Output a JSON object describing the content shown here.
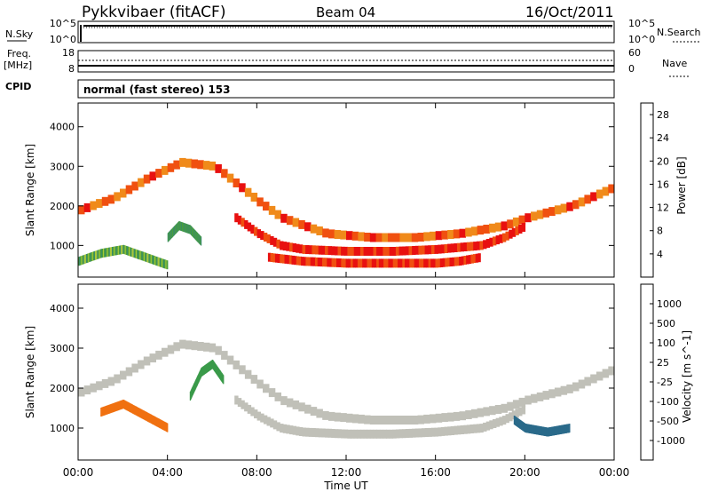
{
  "header": {
    "station": "Pykkvibaer (fitACF)",
    "beam": "Beam 04",
    "date": "16/Oct/2011"
  },
  "sky_panel": {
    "left_label": "N.Sky",
    "left_ticks": [
      "10^5",
      "10^0"
    ],
    "right_label": "N.Search",
    "right_ticks": [
      "10^5",
      "10^0"
    ]
  },
  "freq_panel": {
    "left_label_1": "Freq.",
    "left_label_2": "[MHz]",
    "left_ticks": [
      "18",
      "8"
    ],
    "right_label": "Nave",
    "right_ticks": [
      "60",
      "0"
    ]
  },
  "cpid": {
    "label": "CPID",
    "value": "normal (fast stereo) 153"
  },
  "colors": {
    "power_scale": [
      "#1a2dcc",
      "#2a4fb0",
      "#3a8a6a",
      "#4aa03a",
      "#a8c83a",
      "#f0c02a",
      "#f08a1a",
      "#f05010",
      "#e81010"
    ],
    "velocity_scale": [
      "#1a3acc",
      "#2a6a8a",
      "#3a9a4a",
      "#7ac840",
      "#c8c8c0",
      "#f0a030",
      "#f07010",
      "#e83010",
      "#e81010"
    ],
    "ground_scatter": "#c0c0b8"
  },
  "chart_data": [
    {
      "type": "heatmap",
      "title": "",
      "xlabel": "Time UT",
      "ylabel": "Slant Range [km]",
      "x_ticks": [
        "00:00",
        "04:00",
        "08:00",
        "12:00",
        "16:00",
        "20:00",
        "00:00"
      ],
      "y_ticks": [
        "1000",
        "2000",
        "3000",
        "4000"
      ],
      "xlim_hours": [
        0,
        24
      ],
      "ylim_km": [
        200,
        4600
      ],
      "colorbar": {
        "label": "Power [dB]",
        "ticks": [
          "4",
          "8",
          "12",
          "16",
          "20",
          "24",
          "28"
        ],
        "range": [
          0,
          30
        ]
      },
      "bands": [
        {
          "t": [
            0,
            1.5,
            3,
            4.5,
            6,
            8,
            9,
            11,
            13,
            15,
            17,
            19,
            20,
            22,
            24
          ],
          "r": [
            1900,
            2200,
            2700,
            3100,
            3000,
            2100,
            1700,
            1300,
            1200,
            1200,
            1300,
            1500,
            1700,
            2000,
            2500
          ],
          "value": 24
        },
        {
          "t": [
            7,
            8,
            9,
            10,
            12,
            14,
            16,
            18,
            19,
            20
          ],
          "r": [
            1700,
            1300,
            1000,
            900,
            850,
            850,
            900,
            1000,
            1200,
            1500
          ],
          "value": 28
        },
        {
          "t": [
            8.5,
            10,
            12,
            14,
            16,
            17,
            18
          ],
          "r": [
            700,
            600,
            550,
            550,
            550,
            600,
            700
          ],
          "value": 27
        },
        {
          "t": [
            0,
            1,
            2,
            3,
            4
          ],
          "r": [
            600,
            800,
            900,
            700,
            500
          ],
          "value": 12
        },
        {
          "t": [
            4,
            4.5,
            5,
            5.5
          ],
          "r": [
            1200,
            1500,
            1400,
            1100
          ],
          "value": 10
        }
      ]
    },
    {
      "type": "heatmap",
      "title": "",
      "xlabel": "Time UT",
      "ylabel": "Slant Range [km]",
      "x_ticks": [
        "00:00",
        "04:00",
        "08:00",
        "12:00",
        "16:00",
        "20:00",
        "00:00"
      ],
      "y_ticks": [
        "1000",
        "2000",
        "3000",
        "4000"
      ],
      "xlim_hours": [
        0,
        24
      ],
      "ylim_km": [
        200,
        4600
      ],
      "colorbar": {
        "label": "Velocity [m s^-1]",
        "ticks": [
          "1000",
          "500",
          "100",
          "25",
          "-25",
          "-100",
          "-500",
          "-1000"
        ]
      },
      "bands": [
        {
          "t": [
            0,
            1.5,
            3,
            4.5,
            6,
            8,
            9,
            11,
            13,
            15,
            17,
            19,
            20,
            22,
            24
          ],
          "r": [
            1900,
            2200,
            2700,
            3100,
            3000,
            2100,
            1700,
            1300,
            1200,
            1200,
            1300,
            1500,
            1700,
            2000,
            2500
          ],
          "value": 0
        },
        {
          "t": [
            7,
            8,
            9,
            10,
            12,
            14,
            16,
            18,
            19,
            20
          ],
          "r": [
            1700,
            1300,
            1000,
            900,
            850,
            850,
            900,
            1000,
            1200,
            1500
          ],
          "value": 0
        },
        {
          "t": [
            19.5,
            20,
            21,
            22
          ],
          "r": [
            1200,
            1000,
            900,
            1000
          ],
          "value": 300
        },
        {
          "t": [
            1,
            2,
            3,
            4
          ],
          "r": [
            1400,
            1600,
            1300,
            1000
          ],
          "value": -300
        },
        {
          "t": [
            5,
            5.5,
            6,
            6.5
          ],
          "r": [
            1800,
            2400,
            2600,
            2200
          ],
          "value": 150
        }
      ]
    }
  ]
}
